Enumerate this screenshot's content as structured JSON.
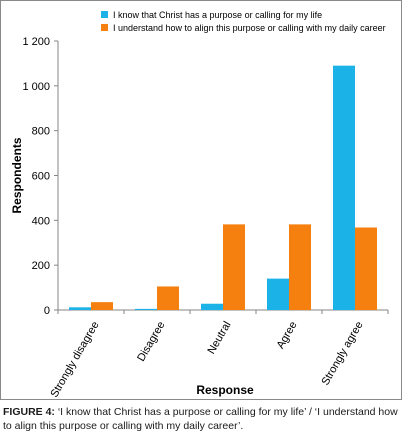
{
  "chart_data": {
    "type": "bar",
    "categories": [
      "Strongly disagree",
      "Disagree",
      "Neutral",
      "Agree",
      "Strongly agree"
    ],
    "series": [
      {
        "name": "I know that Christ has a purpose or calling for my life",
        "color": "#1BB2E8",
        "values": [
          12,
          5,
          28,
          140,
          1090
        ]
      },
      {
        "name": "I understand how to align this purpose or calling with my daily career",
        "color": "#F5800F",
        "values": [
          35,
          105,
          382,
          382,
          368
        ]
      }
    ],
    "title": "",
    "xlabel": "Response",
    "ylabel": "Respondents",
    "ylim": [
      0,
      1200
    ],
    "yticks": [
      0,
      200,
      400,
      600,
      800,
      1000,
      1200
    ],
    "ytick_labels": [
      "0",
      "200",
      "400",
      "600",
      "800",
      "1 000",
      "1 200"
    ],
    "grid": false,
    "legend": "top"
  },
  "caption": {
    "label": "FIGURE 4:",
    "text": " ‘I know that Christ has a purpose or calling for my life’ / ‘I understand how to align this purpose or calling with my daily career’."
  }
}
